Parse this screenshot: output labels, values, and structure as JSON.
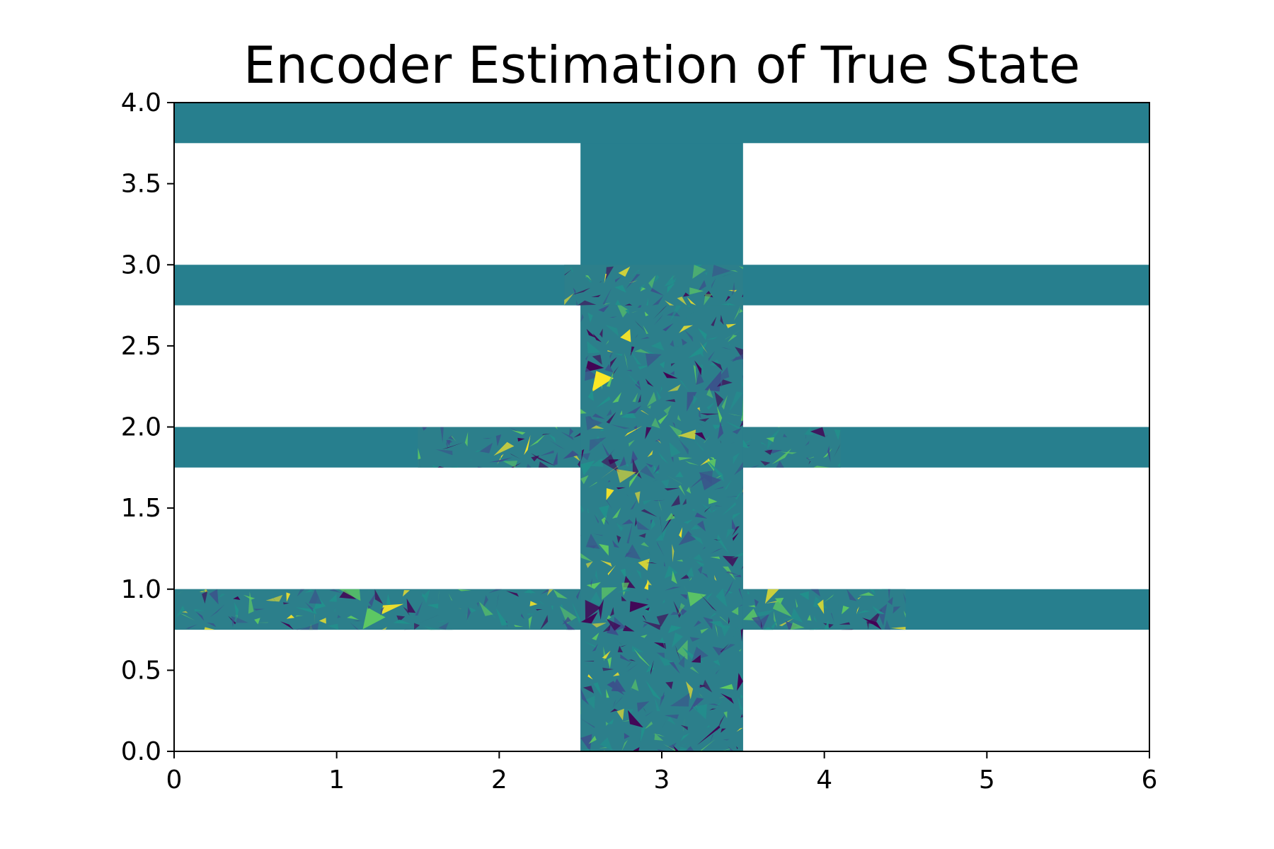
{
  "chart_data": {
    "type": "heatmap",
    "title": "Encoder Estimation of True State",
    "xlabel": "",
    "ylabel": "",
    "xlim": [
      0,
      6
    ],
    "ylim": [
      0,
      4
    ],
    "x_ticks": [
      "0",
      "1",
      "2",
      "3",
      "4",
      "5",
      "6"
    ],
    "y_ticks": [
      "0.0",
      "0.5",
      "1.0",
      "1.5",
      "2.0",
      "2.5",
      "3.0",
      "3.5",
      "4.0"
    ],
    "grid": false,
    "legend": "none",
    "colormap": "viridis",
    "baseline_color": "#277f8e",
    "colormap_stops": [
      "#440154",
      "#3b528b",
      "#21918c",
      "#5ec962",
      "#fde725"
    ],
    "domain_regions": [
      {
        "name": "vertical channel",
        "x": [
          2.5,
          3.5
        ],
        "y": [
          0.0,
          4.0
        ]
      },
      {
        "name": "top band",
        "x": [
          0,
          6
        ],
        "y": [
          3.75,
          4.0
        ]
      },
      {
        "name": "band 3",
        "x": [
          0,
          6
        ],
        "y": [
          2.75,
          3.0
        ]
      },
      {
        "name": "band 2",
        "x": [
          0,
          6
        ],
        "y": [
          1.75,
          2.0
        ]
      },
      {
        "name": "band 1",
        "x": [
          0,
          6
        ],
        "y": [
          0.75,
          1.0
        ]
      }
    ],
    "fluctuation_regions": [
      {
        "x": [
          2.5,
          3.5
        ],
        "y": [
          0.0,
          2.85
        ]
      },
      {
        "x": [
          2.4,
          3.5
        ],
        "y": [
          2.75,
          3.0
        ]
      },
      {
        "x": [
          1.5,
          2.5
        ],
        "y": [
          1.75,
          2.0
        ]
      },
      {
        "x": [
          3.5,
          4.1
        ],
        "y": [
          1.75,
          2.0
        ]
      },
      {
        "x": [
          0.0,
          2.5
        ],
        "y": [
          0.75,
          1.0
        ]
      },
      {
        "x": [
          3.5,
          4.5
        ],
        "y": [
          0.75,
          1.0
        ]
      }
    ]
  }
}
